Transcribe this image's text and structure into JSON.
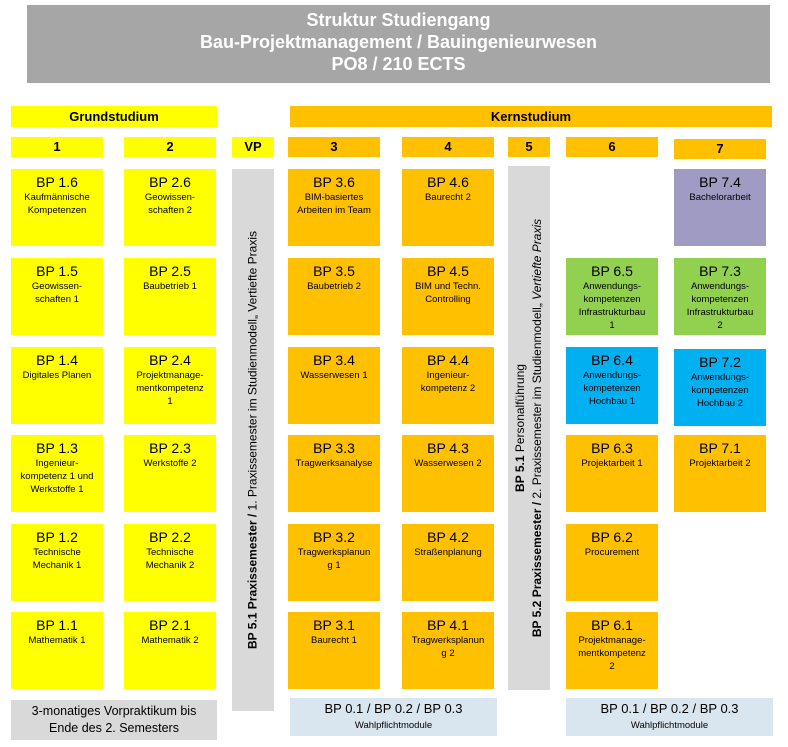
{
  "header": {
    "line1": "Struktur Studiengang",
    "line2": "Bau-Projektmanagement / Bauingenieurwesen",
    "line3": "PO8 / 210 ECTS"
  },
  "phases": {
    "grund": "Grundstudium",
    "kern": "Kernstudium"
  },
  "semesters": {
    "s1": "1",
    "s2": "2",
    "vp": "VP",
    "s3": "3",
    "s4": "4",
    "s5": "5",
    "s6": "6",
    "s7": "7"
  },
  "colors": {
    "yellow": "#ffff00",
    "orange": "#ffc000",
    "gray": "#d9d9d9",
    "header_gray": "#a6a6a6",
    "purple": "#9f9bc2",
    "green": "#92d050",
    "blue": "#00b0f0",
    "light_blue": "#dae6ef"
  },
  "columns": [
    {
      "id": "1",
      "color": "yellow",
      "modules": [
        {
          "code": "BP 1.6",
          "title": "Kaufmännische\nKompetenzen"
        },
        {
          "code": "BP 1.5",
          "title": "Geowissen-\nschaften 1"
        },
        {
          "code": "BP 1.4",
          "title": "Digitales Planen"
        },
        {
          "code": "BP 1.3",
          "title": "Ingenieur-\nkompetenz 1 und\nWerkstoffe 1"
        },
        {
          "code": "BP 1.2",
          "title": "Technische\nMechanik 1"
        },
        {
          "code": "BP 1.1",
          "title": "Mathematik 1"
        }
      ]
    },
    {
      "id": "2",
      "color": "yellow",
      "modules": [
        {
          "code": "BP 2.6",
          "title": "Geowissen-\nschaften 2"
        },
        {
          "code": "BP 2.5",
          "title": "Baubetrieb 1"
        },
        {
          "code": "BP 2.4",
          "title": "Projektmanage-\nmentkompetenz\n1"
        },
        {
          "code": "BP 2.3",
          "title": "Werkstoffe 2"
        },
        {
          "code": "BP 2.2",
          "title": "Technische\nMechanik 2"
        },
        {
          "code": "BP 2.1",
          "title": "Mathematik 2"
        }
      ]
    },
    {
      "id": "3",
      "color": "orange",
      "modules": [
        {
          "code": "BP 3.6",
          "title": "BIM-basiertes\nArbeiten im Team"
        },
        {
          "code": "BP 3.5",
          "title": "Baubetrieb 2"
        },
        {
          "code": "BP 3.4",
          "title": "Wasserwesen 1"
        },
        {
          "code": "BP 3.3",
          "title": "Tragwerksanalyse"
        },
        {
          "code": "BP 3.2",
          "title": "Tragwerksplanun\ng 1"
        },
        {
          "code": "BP 3.1",
          "title": "Baurecht 1"
        }
      ]
    },
    {
      "id": "4",
      "color": "orange",
      "modules": [
        {
          "code": "BP 4.6",
          "title": "Baurecht 2"
        },
        {
          "code": "BP 4.5",
          "title": "BIM und Techn.\nControlling"
        },
        {
          "code": "BP 4.4",
          "title": "Ingenieur-\nkompetenz 2"
        },
        {
          "code": "BP 4.3",
          "title": "Wasserwesen 2"
        },
        {
          "code": "BP 4.2",
          "title": "Straßenplanung"
        },
        {
          "code": "BP 4.1",
          "title": "Tragwerksplanun\ng 2"
        }
      ]
    },
    {
      "id": "6",
      "color": "mixed",
      "modules": [
        null,
        {
          "code": "BP 6.5",
          "title": "Anwendungs-\nkompetenzen\nInfrastrukturbau\n1",
          "color": "green"
        },
        {
          "code": "BP 6.4",
          "title": "Anwendungs-\nkompetenzen\nHochbau 1",
          "color": "blue"
        },
        {
          "code": "BP 6.3",
          "title": "Projektarbeit 1",
          "color": "orange"
        },
        {
          "code": "BP 6.2",
          "title": "Procurement",
          "color": "orange"
        },
        {
          "code": "BP 6.1",
          "title": "Projektmanage-\nmentkompetenz\n2",
          "color": "orange"
        }
      ]
    },
    {
      "id": "7",
      "color": "mixed",
      "modules": [
        {
          "code": "BP 7.4",
          "title": "Bachelorarbeit",
          "color": "purple"
        },
        {
          "code": "BP 7.3",
          "title": "Anwendungs-\nkompetenzen\nInfrastrukturbau\n2",
          "color": "green"
        },
        {
          "code": "BP 7.2",
          "title": "Anwendungs-\nkompetenzen\nHochbau 2",
          "color": "blue"
        },
        {
          "code": "BP 7.1",
          "title": "Projektarbeit 2",
          "color": "orange"
        },
        null,
        null
      ]
    }
  ],
  "vp_column": {
    "bold": "BP 5.1 Praxissemester / ",
    "normal": "1. Praxissemester im Studienmodell„ Vertiefte Praxis"
  },
  "col5": {
    "l1_bold": "BP 5.1",
    "l1_normal": " Personalführung",
    "l2_bold": "BP 5.2 Praxissemester / ",
    "l2_normal": "2. Praxissemester im Studienmodell„ ",
    "l2_italic": "Vertiefte Praxis"
  },
  "bottom": {
    "vorpraktikum": "3-monatiges Vorpraktikum bis\nEnde des 2. Semesters",
    "wahl1_code": "BP 0.1 / BP 0.2 / BP 0.3",
    "wahl1_label": "Wahlpflichtmodule",
    "wahl2_code": "BP 0.1 / BP 0.2 / BP 0.3",
    "wahl2_label": "Wahlpflichtmodule"
  }
}
